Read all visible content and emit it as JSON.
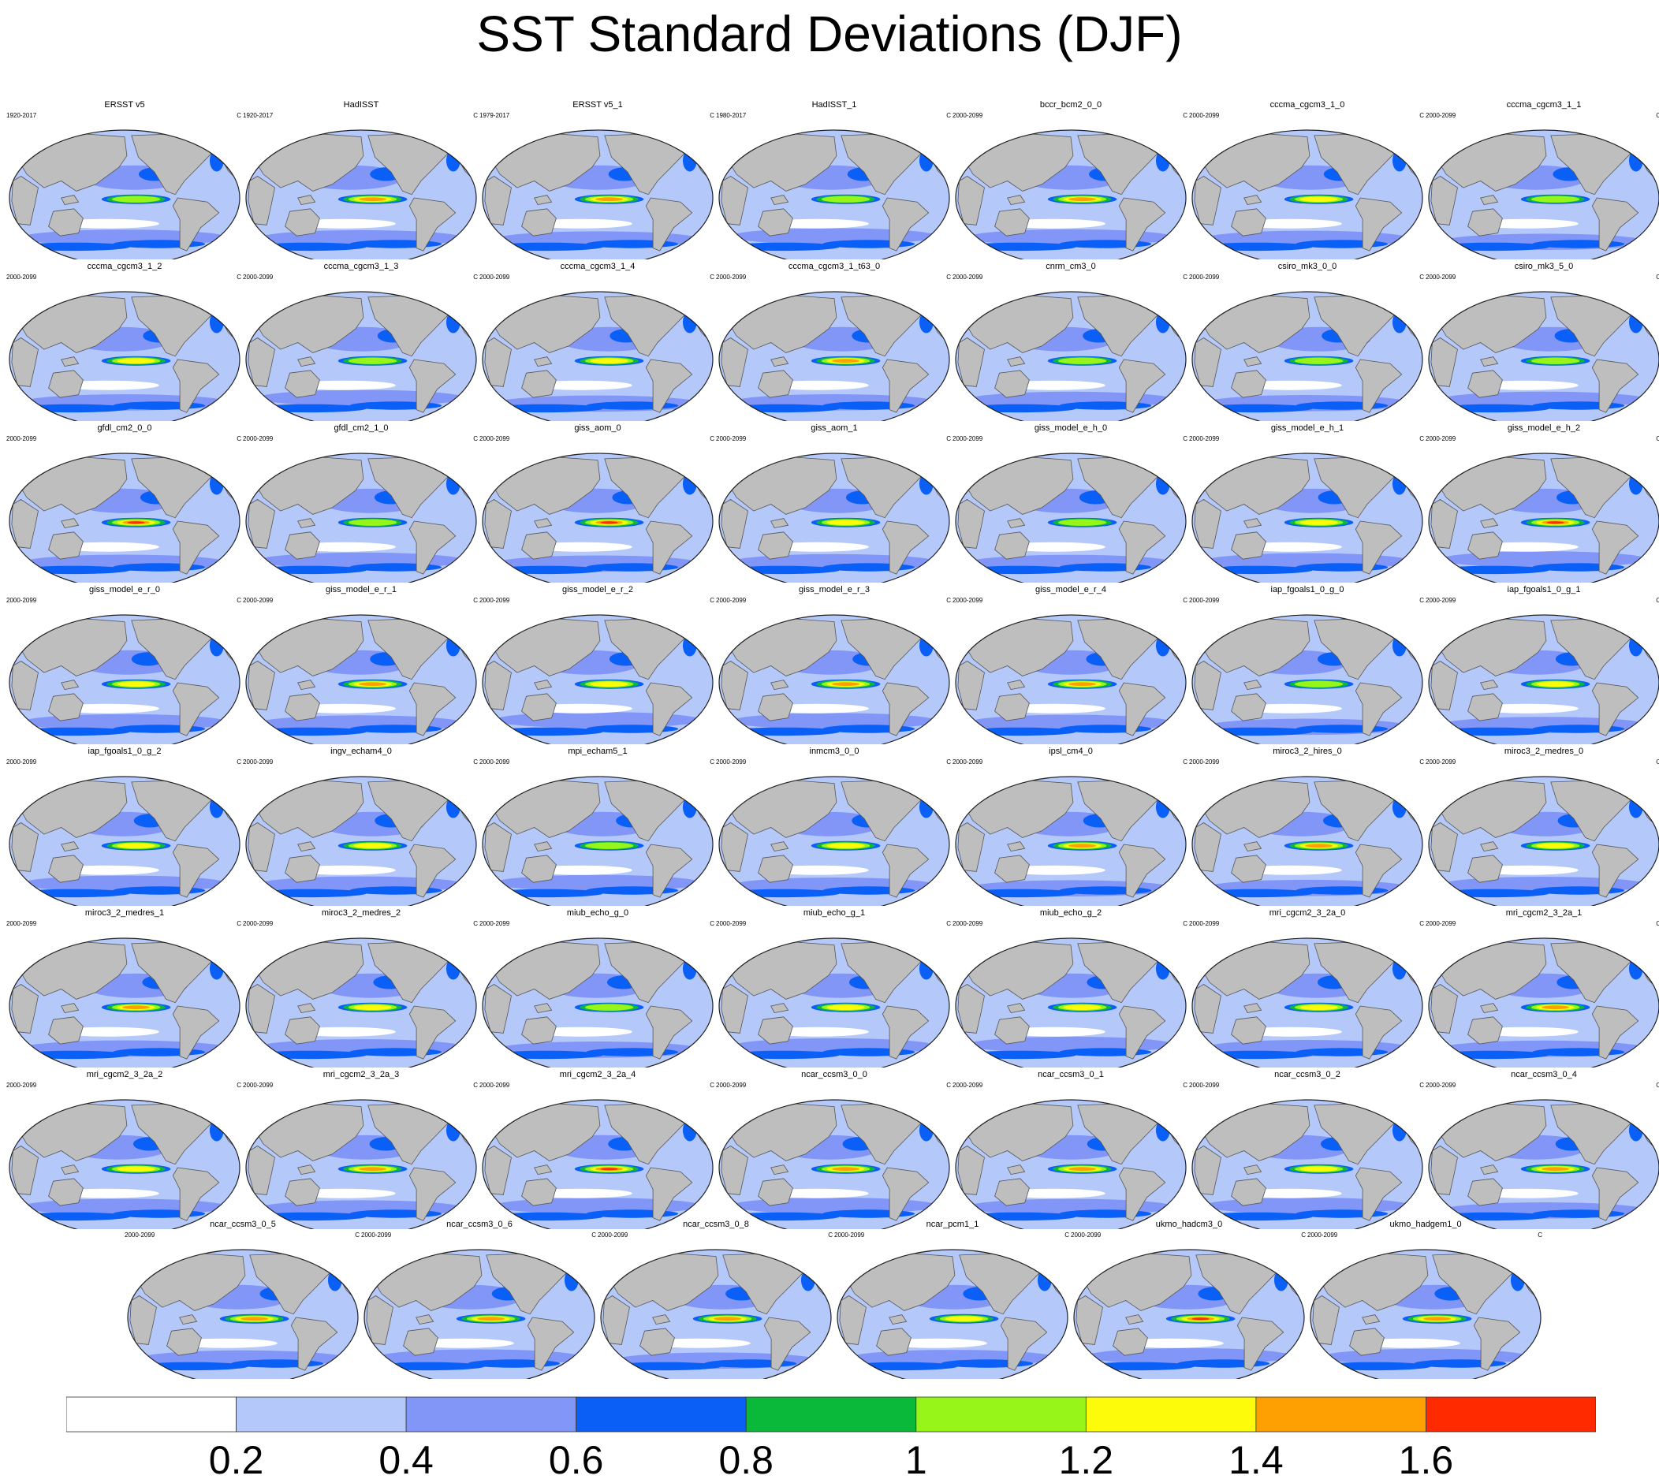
{
  "title": "SST Standard Deviations (DJF)",
  "chart_data": {
    "type": "heatmap",
    "title": "SST Standard Deviations (DJF)",
    "projection": "Robinson world map panels, 1 row per model group",
    "unit": "C",
    "colorbar": {
      "levels": [
        0.2,
        0.4,
        0.6,
        0.8,
        1,
        1.2,
        1.4,
        1.6
      ],
      "labels": [
        "0.2",
        "0.4",
        "0.6",
        "0.8",
        "1",
        "1.2",
        "1.4",
        "1.6"
      ],
      "colors": [
        "#ffffff",
        "#b4c8fa",
        "#8296f8",
        "#0a5ff7",
        "#0ab93a",
        "#98f51a",
        "#fefb0a",
        "#ffa002",
        "#ff2a00"
      ]
    },
    "panels": [
      {
        "name": "ERSST v5",
        "years": "1920-2017",
        "unit": "C"
      },
      {
        "name": "HadISST",
        "years": "1920-2017",
        "unit": "C"
      },
      {
        "name": "ERSST v5_1",
        "years": "1979-2017",
        "unit": "C"
      },
      {
        "name": "HadISST_1",
        "years": "1980-2017",
        "unit": "C"
      },
      {
        "name": "bccr_bcm2_0_0",
        "years": "2000-2099",
        "unit": "C"
      },
      {
        "name": "cccma_cgcm3_1_0",
        "years": "2000-2099",
        "unit": "C"
      },
      {
        "name": "cccma_cgcm3_1_1",
        "years": "2000-2099",
        "unit": "C"
      },
      {
        "name": "cccma_cgcm3_1_2",
        "years": "2000-2099",
        "unit": "C"
      },
      {
        "name": "cccma_cgcm3_1_3",
        "years": "2000-2099",
        "unit": "C"
      },
      {
        "name": "cccma_cgcm3_1_4",
        "years": "2000-2099",
        "unit": "C"
      },
      {
        "name": "cccma_cgcm3_1_t63_0",
        "years": "2000-2099",
        "unit": "C"
      },
      {
        "name": "cnrm_cm3_0",
        "years": "2000-2099",
        "unit": "C"
      },
      {
        "name": "csiro_mk3_0_0",
        "years": "2000-2099",
        "unit": "C"
      },
      {
        "name": "csiro_mk3_5_0",
        "years": "2000-2099",
        "unit": "C"
      },
      {
        "name": "gfdl_cm2_0_0",
        "years": "2000-2099",
        "unit": "C"
      },
      {
        "name": "gfdl_cm2_1_0",
        "years": "2000-2099",
        "unit": "C"
      },
      {
        "name": "giss_aom_0",
        "years": "2000-2099",
        "unit": "C"
      },
      {
        "name": "giss_aom_1",
        "years": "2000-2099",
        "unit": "C"
      },
      {
        "name": "giss_model_e_h_0",
        "years": "2000-2099",
        "unit": "C"
      },
      {
        "name": "giss_model_e_h_1",
        "years": "2000-2099",
        "unit": "C"
      },
      {
        "name": "giss_model_e_h_2",
        "years": "2000-2099",
        "unit": "C"
      },
      {
        "name": "giss_model_e_r_0",
        "years": "2000-2099",
        "unit": "C"
      },
      {
        "name": "giss_model_e_r_1",
        "years": "2000-2099",
        "unit": "C"
      },
      {
        "name": "giss_model_e_r_2",
        "years": "2000-2099",
        "unit": "C"
      },
      {
        "name": "giss_model_e_r_3",
        "years": "2000-2099",
        "unit": "C"
      },
      {
        "name": "giss_model_e_r_4",
        "years": "2000-2099",
        "unit": "C"
      },
      {
        "name": "iap_fgoals1_0_g_0",
        "years": "2000-2099",
        "unit": "C"
      },
      {
        "name": "iap_fgoals1_0_g_1",
        "years": "2000-2099",
        "unit": "C"
      },
      {
        "name": "iap_fgoals1_0_g_2",
        "years": "2000-2099",
        "unit": "C"
      },
      {
        "name": "ingv_echam4_0",
        "years": "2000-2099",
        "unit": "C"
      },
      {
        "name": "mpi_echam5_1",
        "years": "2000-2099",
        "unit": "C"
      },
      {
        "name": "inmcm3_0_0",
        "years": "2000-2099",
        "unit": "C"
      },
      {
        "name": "ipsl_cm4_0",
        "years": "2000-2099",
        "unit": "C"
      },
      {
        "name": "miroc3_2_hires_0",
        "years": "2000-2099",
        "unit": "C"
      },
      {
        "name": "miroc3_2_medres_0",
        "years": "2000-2099",
        "unit": "C"
      },
      {
        "name": "miroc3_2_medres_1",
        "years": "2000-2099",
        "unit": "C"
      },
      {
        "name": "miroc3_2_medres_2",
        "years": "2000-2099",
        "unit": "C"
      },
      {
        "name": "miub_echo_g_0",
        "years": "2000-2099",
        "unit": "C"
      },
      {
        "name": "miub_echo_g_1",
        "years": "2000-2099",
        "unit": "C"
      },
      {
        "name": "miub_echo_g_2",
        "years": "2000-2099",
        "unit": "C"
      },
      {
        "name": "mri_cgcm2_3_2a_0",
        "years": "2000-2099",
        "unit": "C"
      },
      {
        "name": "mri_cgcm2_3_2a_1",
        "years": "2000-2099",
        "unit": "C"
      },
      {
        "name": "mri_cgcm2_3_2a_2",
        "years": "2000-2099",
        "unit": "C"
      },
      {
        "name": "mri_cgcm2_3_2a_3",
        "years": "2000-2099",
        "unit": "C"
      },
      {
        "name": "mri_cgcm2_3_2a_4",
        "years": "2000-2099",
        "unit": "C"
      },
      {
        "name": "ncar_ccsm3_0_0",
        "years": "2000-2099",
        "unit": "C"
      },
      {
        "name": "ncar_ccsm3_0_1",
        "years": "2000-2099",
        "unit": "C"
      },
      {
        "name": "ncar_ccsm3_0_2",
        "years": "2000-2099",
        "unit": "C"
      },
      {
        "name": "ncar_ccsm3_0_4",
        "years": "2000-2099",
        "unit": "C"
      },
      {
        "name": "ncar_ccsm3_0_5",
        "years": "2000-2099",
        "unit": "C"
      },
      {
        "name": "ncar_ccsm3_0_6",
        "years": "2000-2099",
        "unit": "C"
      },
      {
        "name": "ncar_ccsm3_0_8",
        "years": "2000-2099",
        "unit": "C"
      },
      {
        "name": "ncar_pcm1_1",
        "years": "2000-2099",
        "unit": "C"
      },
      {
        "name": "ukmo_hadcm3_0",
        "years": "2000-2099",
        "unit": "C"
      },
      {
        "name": "ukmo_hadgem1_0",
        "years": "2000-2099",
        "unit": "C"
      }
    ]
  }
}
